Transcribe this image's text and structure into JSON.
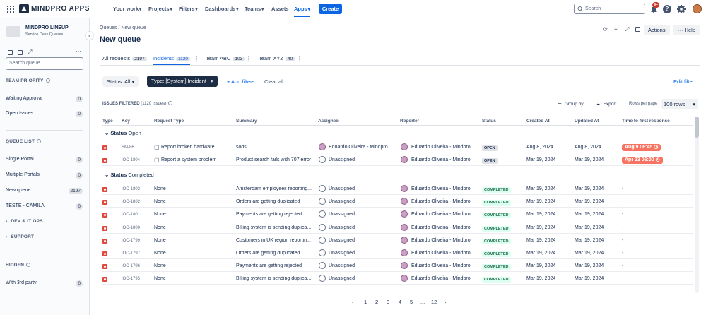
{
  "topbar": {
    "logo_text": "MINDPRO APPS",
    "nav": [
      "Your work",
      "Projects",
      "Filters",
      "Dashboards",
      "Teams",
      "Assets",
      "Apps"
    ],
    "create_label": "Create",
    "search_placeholder": "Search",
    "notification_badge": "9+"
  },
  "sidebar": {
    "project_name": "MINDPRO LINEUP",
    "project_subtitle": "Service Desk Queues",
    "search_placeholder": "Search queue",
    "team_priority_heading": "TEAM PRIORITY",
    "team_priority": [
      {
        "label": "Waiting Approval",
        "count": "0"
      },
      {
        "label": "Open Issues",
        "count": "0"
      }
    ],
    "queue_list_heading": "QUEUE LIST",
    "queue_list": [
      {
        "label": "Single Portal",
        "count": "0"
      },
      {
        "label": "Multiple Portals",
        "count": "0"
      },
      {
        "label": "New queue",
        "count": "2197"
      },
      {
        "label": "TESTE - CAMILA",
        "count": "0"
      }
    ],
    "groups": [
      "DEV & IT OPS",
      "SUPPORT"
    ],
    "hidden_heading": "HIDDEN",
    "hidden": [
      {
        "label": "With 3rd party",
        "count": "0"
      }
    ]
  },
  "header": {
    "breadcrumb": "Queues / New queue",
    "title": "New queue",
    "actions_label": "Actions",
    "help_label": "Help"
  },
  "tabs": [
    {
      "label": "All requests",
      "count": "2197"
    },
    {
      "label": "Incidents",
      "count": "1120"
    },
    {
      "label": "Team ABC",
      "count": "103"
    },
    {
      "label": "Team XYZ",
      "count": "40"
    }
  ],
  "filters": {
    "status": "Status: All",
    "type": "Type: [System] Incident",
    "add": "+ Add filters",
    "clear": "Clear all",
    "edit": "Edit filter"
  },
  "toolbar": {
    "issues_filtered": "ISSUES FILTERED",
    "issues_count": "(1120 Issues)",
    "group_by": "Group by",
    "export": "Export",
    "rows_per_page": "Rows per page",
    "rows_value": "100 rows"
  },
  "columns": [
    "Type",
    "Key",
    "Request Type",
    "Summary",
    "Assignee",
    "Reporter",
    "Status",
    "Created At",
    "Updated At",
    "Time to first response"
  ],
  "groups": [
    {
      "label": "Status",
      "value": "Open",
      "rows": [
        {
          "key": "SM-86",
          "request_type": "Report broken hardware",
          "summary": "sods",
          "assignee": "Eduardo Oliveira - Mindpro",
          "reporter": "Eduardo Oliveira - Mindpro",
          "status": "OPEN",
          "created": "Aug 8, 2024",
          "updated": "Aug 8, 2024",
          "sla": "Aug 9 06:45"
        },
        {
          "key": "IOC-1804",
          "request_type": "Report a system problem",
          "summary": "Product search fails with 707 error",
          "assignee": "Unassigned",
          "reporter": "Eduardo Oliveira - Mindpro",
          "status": "OPEN",
          "created": "Mar 19, 2024",
          "updated": "Mar 19, 2024",
          "sla": "Apr 23 06:00"
        }
      ]
    },
    {
      "label": "Status",
      "value": "Completed",
      "rows": [
        {
          "key": "IOC-1803",
          "request_type": "None",
          "summary": "Amsterdam employees reporting...",
          "assignee": "Unassigned",
          "reporter": "Eduardo Oliveira - Mindpro",
          "status": "COMPLETED",
          "created": "Mar 19, 2024",
          "updated": "Mar 19, 2024",
          "sla": "-"
        },
        {
          "key": "IOC-1802",
          "request_type": "None",
          "summary": "Orders are getting duplicated",
          "assignee": "Unassigned",
          "reporter": "Eduardo Oliveira - Mindpro",
          "status": "COMPLETED",
          "created": "Mar 19, 2024",
          "updated": "Mar 19, 2024",
          "sla": "-"
        },
        {
          "key": "IOC-1801",
          "request_type": "None",
          "summary": "Payments are getting rejected",
          "assignee": "Unassigned",
          "reporter": "Eduardo Oliveira - Mindpro",
          "status": "COMPLETED",
          "created": "Mar 19, 2024",
          "updated": "Mar 19, 2024",
          "sla": "-"
        },
        {
          "key": "IOC-1800",
          "request_type": "None",
          "summary": "Billing system is sending duplica...",
          "assignee": "Unassigned",
          "reporter": "Eduardo Oliveira - Mindpro",
          "status": "COMPLETED",
          "created": "Mar 19, 2024",
          "updated": "Mar 19, 2024",
          "sla": "-"
        },
        {
          "key": "IOC-1799",
          "request_type": "None",
          "summary": "Customers in UK region reportin...",
          "assignee": "Unassigned",
          "reporter": "Eduardo Oliveira - Mindpro",
          "status": "COMPLETED",
          "created": "Mar 19, 2024",
          "updated": "Mar 19, 2024",
          "sla": "-"
        },
        {
          "key": "IOC-1797",
          "request_type": "None",
          "summary": "Orders are getting duplicated",
          "assignee": "Unassigned",
          "reporter": "Eduardo Oliveira - Mindpro",
          "status": "COMPLETED",
          "created": "Mar 19, 2024",
          "updated": "Mar 19, 2024",
          "sla": "-"
        },
        {
          "key": "IOC-1796",
          "request_type": "None",
          "summary": "Payments are getting rejected",
          "assignee": "Unassigned",
          "reporter": "Eduardo Oliveira - Mindpro",
          "status": "COMPLETED",
          "created": "Mar 19, 2024",
          "updated": "Mar 19, 2024",
          "sla": "-"
        },
        {
          "key": "IOC-1795",
          "request_type": "None",
          "summary": "Billing system is sending duplica...",
          "assignee": "Unassigned",
          "reporter": "Eduardo Oliveira - Mindpro",
          "status": "COMPLETED",
          "created": "Mar 19, 2024",
          "updated": "Mar 19, 2024",
          "sla": "-"
        }
      ]
    }
  ],
  "pagination": [
    "1",
    "2",
    "3",
    "4",
    "5",
    "...",
    "12"
  ],
  "colors": {
    "accent": "#0c66e4",
    "sla_breach": "#f87462",
    "incident": "#e2483d"
  }
}
